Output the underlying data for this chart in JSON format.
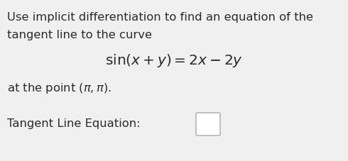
{
  "background_color": "#f0f0f0",
  "text_color": "#2a2a2a",
  "line1": "Use implicit differentiation to find an equation of the",
  "line2": "tangent line to the curve",
  "equation": "$\\mathregular{sin}(x + y) = 2x - 2y$",
  "line3": "at the point $(\\pi, \\pi)$.",
  "line4": "Tangent Line Equation:",
  "body_fontsize": 11.8,
  "eq_fontsize": 14.5,
  "fig_width": 4.9,
  "fig_height": 2.27,
  "dpi": 100
}
